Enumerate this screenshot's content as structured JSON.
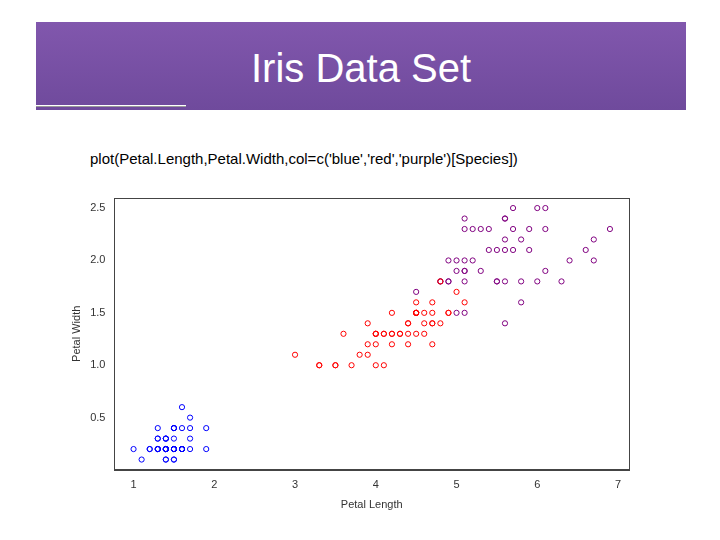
{
  "header": {
    "title": "Iris Data Set"
  },
  "code": "plot(Petal.Length,Petal.Width,col=c('blue','red','purple')[Species])",
  "chart_data": {
    "type": "scatter",
    "x_label": "Petal Length",
    "y_label": "Petal Width",
    "xlim": [
      0.764,
      7.136
    ],
    "ylim": [
      0.004,
      2.596
    ],
    "xticks": [
      1,
      2,
      3,
      4,
      5,
      6,
      7
    ],
    "yticks": [
      0.5,
      {
        "value": 1,
        "label": "1.0"
      },
      1.5,
      {
        "value": 2,
        "label": "2.0"
      },
      2.5
    ],
    "grid": false,
    "marker": "circle",
    "series": [
      {
        "color": "blue",
        "x": [
          1.4,
          1.4,
          1.3,
          1.5,
          1.4,
          1.7,
          1.4,
          1.5,
          1.4,
          1.5,
          1.5,
          1.6,
          1.4,
          1.1,
          1.2,
          1.5,
          1.3,
          1.4,
          1.7,
          1.5,
          1.7,
          1.5,
          1.0,
          1.7,
          1.9,
          1.6,
          1.6,
          1.5,
          1.4,
          1.6,
          1.6,
          1.5,
          1.5,
          1.4,
          1.5,
          1.2,
          1.3,
          1.4,
          1.3,
          1.5,
          1.3,
          1.3,
          1.3,
          1.6,
          1.9,
          1.4,
          1.6,
          1.4,
          1.5,
          1.4
        ],
        "values": [
          0.2,
          0.2,
          0.2,
          0.2,
          0.2,
          0.4,
          0.3,
          0.2,
          0.2,
          0.1,
          0.2,
          0.2,
          0.1,
          0.1,
          0.2,
          0.4,
          0.4,
          0.3,
          0.3,
          0.3,
          0.2,
          0.4,
          0.2,
          0.5,
          0.2,
          0.2,
          0.4,
          0.2,
          0.2,
          0.2,
          0.2,
          0.4,
          0.1,
          0.2,
          0.2,
          0.2,
          0.2,
          0.1,
          0.2,
          0.2,
          0.3,
          0.3,
          0.2,
          0.6,
          0.4,
          0.3,
          0.2,
          0.2,
          0.2,
          0.2
        ]
      },
      {
        "color": "red",
        "x": [
          4.7,
          4.5,
          4.9,
          4.0,
          4.6,
          4.5,
          4.7,
          3.3,
          4.6,
          3.9,
          3.5,
          4.2,
          4.0,
          4.7,
          3.6,
          4.4,
          4.5,
          4.1,
          4.5,
          3.9,
          4.8,
          4.0,
          4.9,
          4.7,
          4.3,
          4.4,
          4.8,
          5.0,
          4.5,
          3.5,
          3.8,
          3.7,
          3.9,
          5.1,
          4.5,
          4.5,
          4.7,
          4.4,
          4.1,
          4.0,
          4.4,
          4.6,
          4.0,
          3.3,
          4.2,
          4.2,
          4.2,
          4.3,
          3.0,
          4.1
        ],
        "values": [
          1.4,
          1.5,
          1.5,
          1.3,
          1.5,
          1.3,
          1.6,
          1.0,
          1.3,
          1.4,
          1.0,
          1.5,
          1.0,
          1.4,
          1.3,
          1.4,
          1.5,
          1.0,
          1.5,
          1.1,
          1.8,
          1.3,
          1.5,
          1.2,
          1.3,
          1.4,
          1.4,
          1.7,
          1.5,
          1.0,
          1.1,
          1.0,
          1.2,
          1.6,
          1.5,
          1.6,
          1.5,
          1.3,
          1.3,
          1.3,
          1.2,
          1.4,
          1.2,
          1.0,
          1.3,
          1.2,
          1.3,
          1.3,
          1.1,
          1.3
        ]
      },
      {
        "color": "purple",
        "x": [
          6.0,
          5.1,
          5.9,
          5.6,
          5.8,
          6.6,
          4.5,
          6.3,
          5.8,
          6.1,
          5.1,
          5.3,
          5.5,
          5.0,
          5.1,
          5.3,
          5.5,
          6.7,
          6.9,
          5.0,
          5.7,
          4.9,
          6.7,
          4.9,
          5.7,
          6.0,
          4.8,
          4.9,
          5.6,
          5.8,
          6.1,
          6.4,
          5.6,
          5.1,
          5.6,
          6.1,
          5.6,
          5.5,
          4.8,
          5.4,
          5.6,
          5.1,
          5.1,
          5.9,
          5.7,
          5.2,
          5.0,
          5.2,
          5.4,
          5.1
        ],
        "values": [
          2.5,
          1.9,
          2.1,
          1.8,
          2.2,
          2.1,
          1.7,
          1.8,
          1.8,
          2.5,
          2.0,
          1.9,
          2.1,
          2.0,
          2.4,
          2.3,
          1.8,
          2.2,
          2.3,
          1.5,
          2.3,
          2.0,
          2.0,
          1.8,
          2.1,
          1.8,
          1.8,
          1.8,
          2.1,
          1.6,
          1.9,
          2.0,
          2.2,
          1.5,
          1.4,
          2.3,
          2.4,
          1.8,
          1.8,
          2.1,
          2.4,
          2.3,
          1.9,
          2.3,
          2.5,
          2.3,
          1.9,
          2.0,
          2.3,
          1.8
        ]
      }
    ]
  }
}
